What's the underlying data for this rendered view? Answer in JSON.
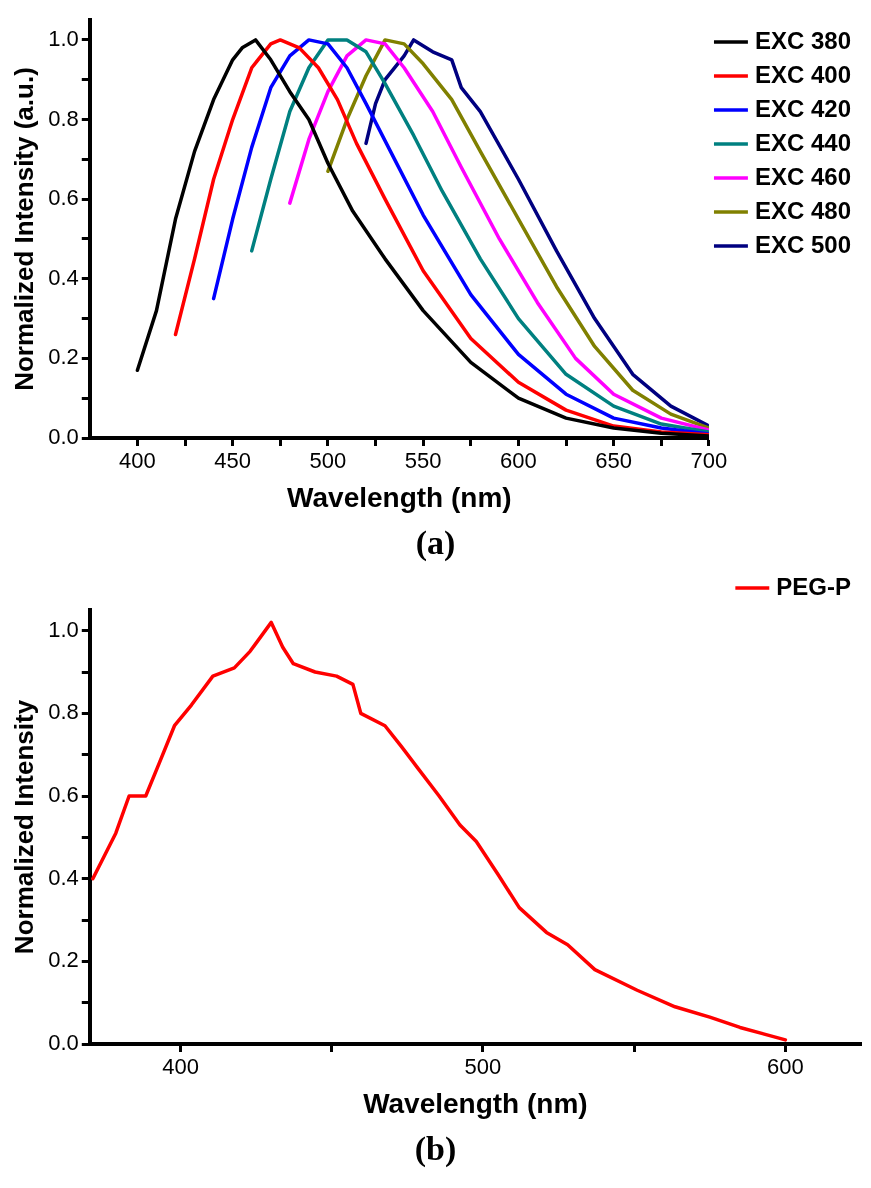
{
  "chart_data": [
    {
      "type": "line",
      "xlabel": "Wavelength (nm)",
      "ylabel": "Normalized Intensity (a.u.)",
      "annotations": [
        "(a)"
      ],
      "legend": "right",
      "grid": false,
      "xlim": [
        375,
        700
      ],
      "ylim": [
        0,
        1.05
      ],
      "xticks": [
        400,
        {
          "value": 425,
          "label": null
        },
        450,
        {
          "value": 475,
          "label": null
        },
        500,
        {
          "value": 525,
          "label": null
        },
        550,
        {
          "value": 575,
          "label": null
        },
        600,
        {
          "value": 625,
          "label": null
        },
        650,
        {
          "value": 675,
          "label": null
        },
        700
      ],
      "yticks": [
        {
          "value": 0,
          "label": "0.0"
        },
        {
          "value": 0.1,
          "label": null
        },
        0.2,
        {
          "value": 0.3,
          "label": null
        },
        0.4,
        {
          "value": 0.5,
          "label": null
        },
        0.6,
        {
          "value": 0.7,
          "label": null
        },
        0.8,
        {
          "value": 0.9,
          "label": null
        },
        {
          "value": 1,
          "label": "1.0"
        }
      ],
      "series": [
        {
          "name": "EXC 380",
          "color": "#000000",
          "x": [
            400,
            410,
            420,
            430,
            440,
            450,
            455,
            462,
            470,
            480,
            490,
            500,
            513,
            530,
            550,
            575,
            600,
            625,
            650,
            675,
            700
          ],
          "values": [
            0.17,
            0.32,
            0.55,
            0.72,
            0.85,
            0.95,
            0.98,
            1.0,
            0.95,
            0.87,
            0.8,
            0.69,
            0.57,
            0.45,
            0.32,
            0.19,
            0.1,
            0.05,
            0.025,
            0.012,
            0.005
          ]
        },
        {
          "name": "EXC 400",
          "color": "#ff0000",
          "x": [
            420,
            430,
            440,
            450,
            460,
            470,
            475,
            485,
            495,
            505,
            515,
            530,
            550,
            575,
            600,
            625,
            650,
            675,
            700
          ],
          "values": [
            0.26,
            0.45,
            0.65,
            0.8,
            0.93,
            0.99,
            1.0,
            0.98,
            0.93,
            0.85,
            0.74,
            0.6,
            0.42,
            0.25,
            0.14,
            0.07,
            0.03,
            0.015,
            0.008
          ]
        },
        {
          "name": "EXC 420",
          "color": "#0000ff",
          "x": [
            440,
            450,
            460,
            470,
            480,
            490,
            500,
            510,
            520,
            535,
            550,
            575,
            600,
            625,
            650,
            675,
            700
          ],
          "values": [
            0.35,
            0.55,
            0.73,
            0.88,
            0.96,
            1.0,
            0.99,
            0.93,
            0.84,
            0.7,
            0.56,
            0.36,
            0.21,
            0.11,
            0.05,
            0.025,
            0.01
          ]
        },
        {
          "name": "EXC 440",
          "color": "#008080",
          "x": [
            460,
            470,
            480,
            490,
            500,
            510,
            520,
            530,
            545,
            560,
            580,
            600,
            625,
            650,
            675,
            700
          ],
          "values": [
            0.47,
            0.65,
            0.82,
            0.93,
            1.0,
            1.0,
            0.97,
            0.89,
            0.76,
            0.62,
            0.45,
            0.3,
            0.16,
            0.08,
            0.035,
            0.015
          ]
        },
        {
          "name": "EXC 460",
          "color": "#ff00ff",
          "x": [
            480,
            490,
            500,
            510,
            520,
            530,
            540,
            555,
            570,
            590,
            610,
            630,
            650,
            675,
            700
          ],
          "values": [
            0.59,
            0.75,
            0.87,
            0.96,
            1.0,
            0.99,
            0.93,
            0.82,
            0.68,
            0.5,
            0.34,
            0.2,
            0.11,
            0.05,
            0.02
          ]
        },
        {
          "name": "EXC 480",
          "color": "#808000",
          "x": [
            500,
            510,
            520,
            530,
            540,
            550,
            565,
            580,
            600,
            620,
            640,
            660,
            680,
            700
          ],
          "values": [
            0.67,
            0.8,
            0.91,
            1.0,
            0.99,
            0.94,
            0.85,
            0.72,
            0.55,
            0.38,
            0.23,
            0.12,
            0.06,
            0.025
          ]
        },
        {
          "name": "EXC 500",
          "color": "#000080",
          "x": [
            520,
            525,
            530,
            540,
            545,
            555,
            565,
            570,
            580,
            600,
            620,
            640,
            660,
            680,
            700
          ],
          "values": [
            0.74,
            0.84,
            0.9,
            0.96,
            1.0,
            0.97,
            0.95,
            0.88,
            0.82,
            0.65,
            0.47,
            0.3,
            0.16,
            0.08,
            0.03
          ]
        }
      ]
    },
    {
      "type": "line",
      "xlabel": "Wavelength (nm)",
      "ylabel": "Normalized Intensity",
      "annotations": [
        "(b)"
      ],
      "legend": "top right",
      "grid": false,
      "xlim": [
        370,
        625
      ],
      "ylim": [
        0,
        1.05
      ],
      "xticks": [
        400,
        {
          "value": 450,
          "label": null
        },
        500,
        {
          "value": 550,
          "label": null
        },
        600
      ],
      "yticks": [
        {
          "value": 0,
          "label": "0.0"
        },
        {
          "value": 0.1,
          "label": null
        },
        0.2,
        {
          "value": 0.3,
          "label": null
        },
        0.4,
        {
          "value": 0.5,
          "label": null
        },
        0.6,
        {
          "value": 0.7,
          "label": null
        },
        0.8,
        {
          "value": 0.9,
          "label": null
        },
        {
          "value": 1,
          "label": "1.0"
        }
      ],
      "series": [
        {
          "name": "PEG-P",
          "color": "#ff0000",
          "x": [
            371,
            378.6,
            383,
            388.5,
            393,
            398,
            403.6,
            410.7,
            417.8,
            423,
            430,
            433.8,
            437.3,
            444.5,
            451.6,
            457,
            459.6,
            467.6,
            473,
            478.2,
            485.5,
            492.4,
            497.8,
            505,
            512,
            521,
            528,
            537,
            551,
            563.5,
            575,
            585,
            600
          ],
          "values": [
            0.4,
            0.51,
            0.6,
            0.6,
            0.68,
            0.77,
            0.82,
            0.89,
            0.91,
            0.95,
            1.02,
            0.96,
            0.92,
            0.9,
            0.89,
            0.87,
            0.8,
            0.77,
            0.72,
            0.67,
            0.6,
            0.53,
            0.49,
            0.41,
            0.33,
            0.27,
            0.24,
            0.18,
            0.13,
            0.09,
            0.065,
            0.04,
            0.01
          ]
        }
      ]
    }
  ]
}
